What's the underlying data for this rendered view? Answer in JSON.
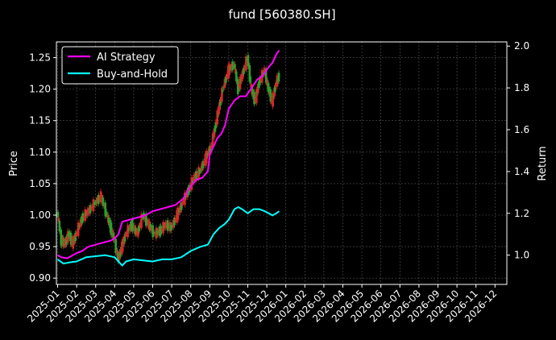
{
  "chart_data": {
    "type": "line",
    "title": "fund [560380.SH]",
    "ylabel": "Price",
    "y2label": "Return",
    "ylim": [
      0.89,
      1.275
    ],
    "y2lim": [
      0.86,
      2.02
    ],
    "yticks": [
      "0.90",
      "0.95",
      "1.00",
      "1.05",
      "1.10",
      "1.15",
      "1.20",
      "1.25"
    ],
    "y2ticks": [
      "1.0",
      "1.2",
      "1.4",
      "1.6",
      "1.8",
      "2.0"
    ],
    "xticks": [
      "2025-01",
      "2025-02",
      "2025-03",
      "2025-04",
      "2025-05",
      "2025-06",
      "2025-07",
      "2025-08",
      "2025-09",
      "2025-10",
      "2025-11",
      "2025-12",
      "2026-01",
      "2026-02",
      "2026-03",
      "2026-04",
      "2026-05",
      "2026-06",
      "2026-07",
      "2026-08",
      "2026-09",
      "2026-10",
      "2026-11",
      "2026-12"
    ],
    "grid": true,
    "legend": "top-left",
    "colors": {
      "background": "#000000",
      "ai": "#ff00ff",
      "bh": "#00ffff",
      "up": "#d62728",
      "down": "#2ca02c",
      "grid": "#555555"
    },
    "series": [
      {
        "name": "AI Strategy",
        "axis": "right",
        "color": "#ff00ff",
        "points": [
          [
            0,
            1.0
          ],
          [
            0.2,
            0.99
          ],
          [
            0.5,
            0.985
          ],
          [
            0.8,
            1.0
          ],
          [
            1.0,
            1.01
          ],
          [
            1.3,
            1.02
          ],
          [
            1.6,
            1.04
          ],
          [
            2.0,
            1.05
          ],
          [
            2.4,
            1.06
          ],
          [
            2.8,
            1.07
          ],
          [
            3.0,
            1.08
          ],
          [
            3.2,
            1.1
          ],
          [
            3.4,
            1.16
          ],
          [
            3.8,
            1.17
          ],
          [
            4.2,
            1.18
          ],
          [
            4.6,
            1.19
          ],
          [
            5.0,
            1.21
          ],
          [
            5.4,
            1.22
          ],
          [
            5.8,
            1.23
          ],
          [
            6.2,
            1.24
          ],
          [
            6.6,
            1.27
          ],
          [
            7.0,
            1.33
          ],
          [
            7.3,
            1.36
          ],
          [
            7.6,
            1.37
          ],
          [
            7.9,
            1.4
          ],
          [
            8.0,
            1.48
          ],
          [
            8.2,
            1.52
          ],
          [
            8.4,
            1.56
          ],
          [
            8.6,
            1.58
          ],
          [
            8.8,
            1.62
          ],
          [
            9.0,
            1.7
          ],
          [
            9.3,
            1.74
          ],
          [
            9.6,
            1.76
          ],
          [
            9.9,
            1.76
          ],
          [
            10.2,
            1.8
          ],
          [
            10.5,
            1.84
          ],
          [
            10.8,
            1.86
          ],
          [
            11.1,
            1.9
          ],
          [
            11.3,
            1.92
          ],
          [
            11.5,
            1.96
          ],
          [
            11.65,
            1.98
          ]
        ]
      },
      {
        "name": "Buy-and-Hold",
        "axis": "right",
        "color": "#00ffff",
        "points": [
          [
            0,
            0.98
          ],
          [
            0.3,
            0.96
          ],
          [
            0.6,
            0.965
          ],
          [
            1.0,
            0.97
          ],
          [
            1.5,
            0.99
          ],
          [
            2.0,
            0.995
          ],
          [
            2.5,
            1.0
          ],
          [
            3.0,
            0.99
          ],
          [
            3.2,
            0.97
          ],
          [
            3.4,
            0.95
          ],
          [
            3.6,
            0.97
          ],
          [
            4.0,
            0.98
          ],
          [
            4.5,
            0.975
          ],
          [
            5.0,
            0.97
          ],
          [
            5.5,
            0.98
          ],
          [
            6.0,
            0.98
          ],
          [
            6.5,
            0.99
          ],
          [
            7.0,
            1.02
          ],
          [
            7.5,
            1.04
          ],
          [
            7.9,
            1.05
          ],
          [
            8.2,
            1.1
          ],
          [
            8.5,
            1.13
          ],
          [
            8.8,
            1.15
          ],
          [
            9.0,
            1.17
          ],
          [
            9.3,
            1.22
          ],
          [
            9.5,
            1.23
          ],
          [
            9.7,
            1.22
          ],
          [
            10.0,
            1.2
          ],
          [
            10.3,
            1.22
          ],
          [
            10.6,
            1.22
          ],
          [
            10.9,
            1.21
          ],
          [
            11.1,
            1.2
          ],
          [
            11.3,
            1.19
          ],
          [
            11.5,
            1.2
          ],
          [
            11.65,
            1.21
          ]
        ]
      },
      {
        "name": "Price",
        "axis": "left",
        "points": [
          [
            0,
            1.005
          ],
          [
            0.2,
            0.96
          ],
          [
            0.4,
            0.955
          ],
          [
            0.6,
            0.97
          ],
          [
            0.8,
            0.955
          ],
          [
            1.0,
            0.97
          ],
          [
            1.3,
            0.995
          ],
          [
            1.6,
            1.005
          ],
          [
            2.0,
            1.02
          ],
          [
            2.3,
            1.03
          ],
          [
            2.6,
            1.0
          ],
          [
            2.8,
            0.98
          ],
          [
            3.0,
            0.96
          ],
          [
            3.2,
            0.93
          ],
          [
            3.4,
            0.95
          ],
          [
            3.6,
            0.97
          ],
          [
            3.9,
            0.985
          ],
          [
            4.2,
            0.97
          ],
          [
            4.5,
            1.0
          ],
          [
            4.8,
            0.985
          ],
          [
            5.1,
            0.97
          ],
          [
            5.4,
            0.975
          ],
          [
            5.7,
            0.985
          ],
          [
            6.0,
            0.98
          ],
          [
            6.3,
            1.0
          ],
          [
            6.6,
            1.02
          ],
          [
            6.9,
            1.04
          ],
          [
            7.2,
            1.06
          ],
          [
            7.5,
            1.07
          ],
          [
            7.8,
            1.09
          ],
          [
            8.1,
            1.11
          ],
          [
            8.3,
            1.14
          ],
          [
            8.5,
            1.17
          ],
          [
            8.7,
            1.2
          ],
          [
            9.0,
            1.23
          ],
          [
            9.3,
            1.24
          ],
          [
            9.5,
            1.2
          ],
          [
            9.7,
            1.22
          ],
          [
            10.0,
            1.25
          ],
          [
            10.2,
            1.2
          ],
          [
            10.4,
            1.18
          ],
          [
            10.6,
            1.21
          ],
          [
            10.9,
            1.23
          ],
          [
            11.1,
            1.2
          ],
          [
            11.3,
            1.18
          ],
          [
            11.5,
            1.21
          ],
          [
            11.65,
            1.22
          ]
        ]
      }
    ]
  }
}
